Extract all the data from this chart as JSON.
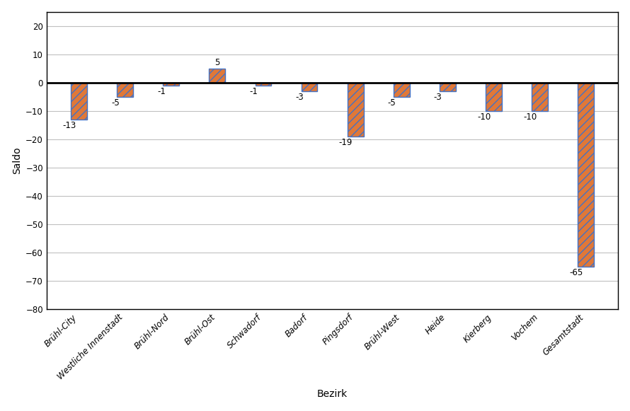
{
  "xlabel": "Bezirk",
  "ylabel": "Saldo",
  "categories": [
    "Brühl-City",
    "Westliche Innenstadt",
    "Brühl-Nord",
    "Brühl-Ost",
    "Schwadorf",
    "Badorf",
    "Pingsdorf",
    "Brühl-West",
    "Heide",
    "Kierberg",
    "Vochem",
    "Gesamtstadt"
  ],
  "values": [
    -13,
    -5,
    -1,
    5,
    -1,
    -3,
    -19,
    -5,
    -3,
    -10,
    -10,
    -65
  ],
  "bar_color_fill": "#E07838",
  "bar_color_hatch": "#4472C4",
  "hatch_pattern": "///",
  "bar_width": 0.35,
  "ylim": [
    -80,
    25
  ],
  "yticks": [
    -80,
    -70,
    -60,
    -50,
    -40,
    -30,
    -20,
    -10,
    0,
    10,
    20
  ],
  "title_color1": "#00AA00",
  "title_color2": "#000000",
  "label_fontsize": 8.5,
  "tick_fontsize": 8.5,
  "axis_label_fontsize": 10,
  "title_fontsize1": 12,
  "title_fontsize2": 11,
  "grid_color": "#C0C0C0",
  "background_color": "#FFFFFF",
  "border_color": "#000000",
  "figsize": [
    8.9,
    5.81
  ]
}
